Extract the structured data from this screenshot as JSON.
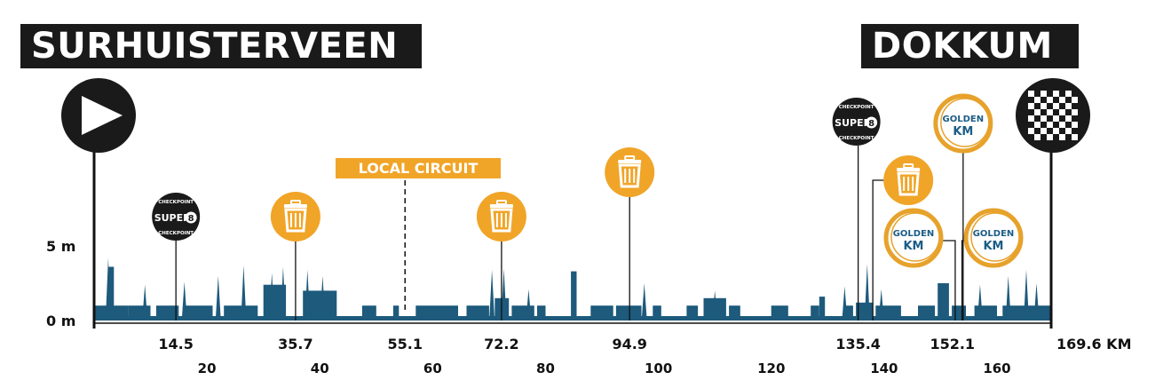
{
  "header": {
    "start_city": "SURHUISTERVEEN",
    "finish_city": "DOKKUM"
  },
  "colors": {
    "profile": "#1d5a7c",
    "feed": "#f0a528",
    "checkpoint": "#1a1a1a",
    "golden_ring": "#e7a22c",
    "golden_text": "#1b5d86",
    "ink": "#111111"
  },
  "chart_data": {
    "type": "area",
    "title": "",
    "xlabel": "",
    "ylabel": "",
    "x_unit": "KM",
    "xlim": [
      0,
      169.6
    ],
    "ylim": [
      0,
      5
    ],
    "y_ticks": [
      {
        "value": 5,
        "label": "5 m"
      },
      {
        "value": 0,
        "label": "0 m"
      }
    ],
    "x_ticks_minor": [
      20,
      40,
      60,
      80,
      100,
      120,
      140,
      160
    ],
    "x_ticks_major": [
      {
        "km": 14.5,
        "label": "14.5"
      },
      {
        "km": 35.7,
        "label": "35.7"
      },
      {
        "km": 55.1,
        "label": "55.1"
      },
      {
        "km": 72.2,
        "label": "72.2"
      },
      {
        "km": 94.9,
        "label": "94.9"
      },
      {
        "km": 135.4,
        "label": "135.4"
      },
      {
        "km": 152.1,
        "label": "152.1"
      },
      {
        "km": 169.6,
        "label": "169.6 KM"
      }
    ],
    "profile_segments": [
      {
        "from": 0,
        "to": 6,
        "elevation": 1
      },
      {
        "from": 2.5,
        "to": 3.5,
        "elevation": 3.6
      },
      {
        "from": 6,
        "to": 10,
        "elevation": 1
      },
      {
        "from": 11,
        "to": 15,
        "elevation": 1
      },
      {
        "from": 16,
        "to": 21,
        "elevation": 1
      },
      {
        "from": 23,
        "to": 29,
        "elevation": 1
      },
      {
        "from": 30,
        "to": 34,
        "elevation": 2.4
      },
      {
        "from": 37,
        "to": 43,
        "elevation": 2
      },
      {
        "from": 47.5,
        "to": 50,
        "elevation": 1
      },
      {
        "from": 53,
        "to": 54,
        "elevation": 1
      },
      {
        "from": 57,
        "to": 64.5,
        "elevation": 1
      },
      {
        "from": 66,
        "to": 70,
        "elevation": 1
      },
      {
        "from": 71,
        "to": 73.5,
        "elevation": 1.5
      },
      {
        "from": 74,
        "to": 78,
        "elevation": 1
      },
      {
        "from": 78.5,
        "to": 80,
        "elevation": 1
      },
      {
        "from": 84.5,
        "to": 85.5,
        "elevation": 3.3
      },
      {
        "from": 88,
        "to": 92,
        "elevation": 1
      },
      {
        "from": 92.5,
        "to": 97,
        "elevation": 1
      },
      {
        "from": 99,
        "to": 100.5,
        "elevation": 1
      },
      {
        "from": 105,
        "to": 107,
        "elevation": 1
      },
      {
        "from": 108,
        "to": 112,
        "elevation": 1.5
      },
      {
        "from": 112.5,
        "to": 114.5,
        "elevation": 1
      },
      {
        "from": 120,
        "to": 123,
        "elevation": 1
      },
      {
        "from": 127,
        "to": 128.5,
        "elevation": 1
      },
      {
        "from": 128.5,
        "to": 129.5,
        "elevation": 1.6
      },
      {
        "from": 133,
        "to": 134.5,
        "elevation": 1
      },
      {
        "from": 135,
        "to": 138,
        "elevation": 1.2
      },
      {
        "from": 138.5,
        "to": 143,
        "elevation": 1
      },
      {
        "from": 146,
        "to": 149,
        "elevation": 1
      },
      {
        "from": 149.5,
        "to": 151.5,
        "elevation": 2.5
      },
      {
        "from": 152,
        "to": 154.5,
        "elevation": 1
      },
      {
        "from": 156,
        "to": 160,
        "elevation": 1
      },
      {
        "from": 161,
        "to": 169.6,
        "elevation": 1
      }
    ],
    "profile_spikes": [
      {
        "km": 2.5,
        "elevation": 4.2
      },
      {
        "km": 9,
        "elevation": 2.4
      },
      {
        "km": 16,
        "elevation": 2.6
      },
      {
        "km": 22,
        "elevation": 3
      },
      {
        "km": 26.5,
        "elevation": 3.7
      },
      {
        "km": 31.5,
        "elevation": 3.2
      },
      {
        "km": 33.5,
        "elevation": 3.6
      },
      {
        "km": 37.8,
        "elevation": 3.4
      },
      {
        "km": 40.5,
        "elevation": 3
      },
      {
        "km": 70.5,
        "elevation": 3.4
      },
      {
        "km": 72.6,
        "elevation": 3.5
      },
      {
        "km": 77,
        "elevation": 2.1
      },
      {
        "km": 97.5,
        "elevation": 2.5
      },
      {
        "km": 110,
        "elevation": 2
      },
      {
        "km": 133,
        "elevation": 2.3
      },
      {
        "km": 137,
        "elevation": 3.8
      },
      {
        "km": 139.5,
        "elevation": 2.1
      },
      {
        "km": 157,
        "elevation": 2.4
      },
      {
        "km": 162,
        "elevation": 3
      },
      {
        "km": 165.2,
        "elevation": 3.4
      },
      {
        "km": 167,
        "elevation": 2.5
      }
    ]
  },
  "markers": {
    "start": {
      "km": 0,
      "name": "start-flag-icon"
    },
    "finish": {
      "km": 169.6,
      "name": "finish-flag-icon"
    },
    "local_circuit": {
      "km": 55.1,
      "label": "LOCAL CIRCUIT"
    },
    "checkpoints": [
      {
        "km": 14.5,
        "top": "CHECKPOINT",
        "mid": "SUPER",
        "num": "8",
        "bottom": "CHECKPOINT"
      },
      {
        "km": 135.4,
        "top": "CHECKPOINT",
        "mid": "SUPER",
        "num": "8",
        "bottom": "CHECKPOINT"
      }
    ],
    "feed_zones": [
      {
        "km": 35.7
      },
      {
        "km": 72.2
      },
      {
        "km": 94.9
      },
      {
        "km": 138
      }
    ],
    "golden_km": [
      {
        "km": 154,
        "line1": "GOLDEN",
        "line2": "KM"
      },
      {
        "km": 152.6,
        "line1": "GOLDEN",
        "line2": "KM"
      },
      {
        "km": 153.8,
        "line1": "GOLDEN",
        "line2": "KM"
      }
    ]
  }
}
